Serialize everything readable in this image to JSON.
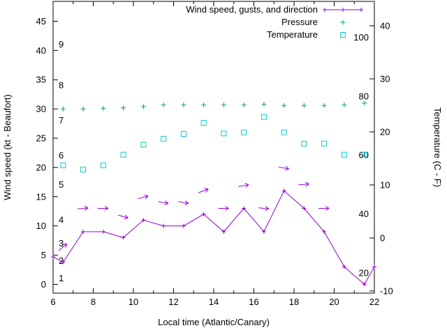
{
  "chart_data": {
    "type": "line",
    "title": "",
    "xlabel": "Local time (Atlantic/Canary)",
    "ylabel_left": "Wind speed (kt - Beaufort)",
    "ylabel_right": "Temperature (C - F)",
    "grid": false,
    "legend_position": "top-right-inside",
    "x_axis": {
      "min": 6,
      "max": 22,
      "major_ticks": [
        6,
        8,
        10,
        12,
        14,
        16,
        18,
        20,
        22
      ],
      "minor_ticks": [
        7,
        9,
        11,
        13,
        15,
        17,
        19,
        21
      ]
    },
    "left_axis": {
      "min": -1.5,
      "max": 48.4,
      "major_ticks": [
        0,
        5,
        10,
        15,
        20,
        25,
        30,
        35,
        40,
        45
      ],
      "beaufort_scale": [
        {
          "bft": "1",
          "kt": 1
        },
        {
          "bft": "2",
          "kt": 4
        },
        {
          "bft": "3",
          "kt": 7
        },
        {
          "bft": "4",
          "kt": 11
        },
        {
          "bft": "5",
          "kt": 17
        },
        {
          "bft": "6",
          "kt": 22
        },
        {
          "bft": "7",
          "kt": 28
        },
        {
          "bft": "8",
          "kt": 34
        },
        {
          "bft": "9",
          "kt": 41
        }
      ]
    },
    "right_axis": {
      "min_c": -10.4,
      "max_c": 44.6,
      "celsius_ticks": [
        -10,
        0,
        10,
        20,
        30,
        40
      ],
      "fahrenheit_labels": [
        20,
        40,
        60,
        80,
        100
      ]
    },
    "legend": [
      {
        "label": "Wind speed, gusts, and direction",
        "marker": "line-plus",
        "color": "#9400d3"
      },
      {
        "label": "Pressure",
        "marker": "plus",
        "color": "#009e73"
      },
      {
        "label": "Temperature",
        "marker": "open-square",
        "color": "#00ced1"
      }
    ],
    "series": {
      "wind_speed": {
        "axis": "left",
        "color": "#9400d3",
        "x": [
          6,
          6.5,
          7.5,
          8.5,
          9.5,
          10.5,
          11.5,
          12.5,
          13.5,
          14.5,
          15.5,
          16.5,
          17.5,
          18.5,
          19.5,
          20.5,
          21.5,
          22
        ],
        "kt": [
          4.7,
          3.8,
          9,
          9,
          8,
          11,
          10,
          10,
          12,
          9,
          13,
          9,
          16,
          13,
          9,
          3,
          0,
          3
        ]
      },
      "gusts": {
        "axis": "left",
        "color": "#9400d3",
        "points": [
          {
            "x": 6.5,
            "kt": 6.4,
            "dir_deg": -40
          },
          {
            "x": 7.5,
            "kt": 13,
            "dir_deg": -5
          },
          {
            "x": 8.5,
            "kt": 13,
            "dir_deg": 0
          },
          {
            "x": 9.5,
            "kt": 11.6,
            "dir_deg": 15
          },
          {
            "x": 10.5,
            "kt": 14.9,
            "dir_deg": -15
          },
          {
            "x": 11.5,
            "kt": 14,
            "dir_deg": 10
          },
          {
            "x": 12.5,
            "kt": 14,
            "dir_deg": 10
          },
          {
            "x": 13.5,
            "kt": 16,
            "dir_deg": -20
          },
          {
            "x": 14.5,
            "kt": 13,
            "dir_deg": 0
          },
          {
            "x": 15.5,
            "kt": 16.9,
            "dir_deg": -10
          },
          {
            "x": 16.5,
            "kt": 13,
            "dir_deg": 5
          },
          {
            "x": 17.5,
            "kt": 19.9,
            "dir_deg": 10
          },
          {
            "x": 18.5,
            "kt": 17.1,
            "dir_deg": -5
          },
          {
            "x": 19.5,
            "kt": 13,
            "dir_deg": 0
          }
        ]
      },
      "pressure": {
        "axis": "left",
        "color": "#009e73",
        "x": [
          6.5,
          7.5,
          8.5,
          9.5,
          10.5,
          11.5,
          12.5,
          13.5,
          14.5,
          15.5,
          16.5,
          17.5,
          18.5,
          19.5,
          20.5,
          21.5
        ],
        "values": [
          30.0,
          30.0,
          30.1,
          30.2,
          30.4,
          30.7,
          30.7,
          30.7,
          30.7,
          30.7,
          30.8,
          30.6,
          30.6,
          30.6,
          30.7,
          31.0
        ]
      },
      "temperature": {
        "axis": "right",
        "color": "#00ced1",
        "x": [
          6.5,
          7.5,
          8.5,
          9.5,
          10.5,
          11.5,
          12.5,
          13.5,
          14.5,
          15.5,
          16.5,
          17.5,
          18.5,
          19.5,
          20.5,
          21.5
        ],
        "c": [
          13.7,
          12.9,
          13.7,
          15.7,
          17.6,
          18.7,
          19.6,
          21.7,
          19.7,
          19.9,
          22.8,
          19.9,
          17.8,
          17.8,
          15.7,
          15.7
        ]
      }
    }
  }
}
